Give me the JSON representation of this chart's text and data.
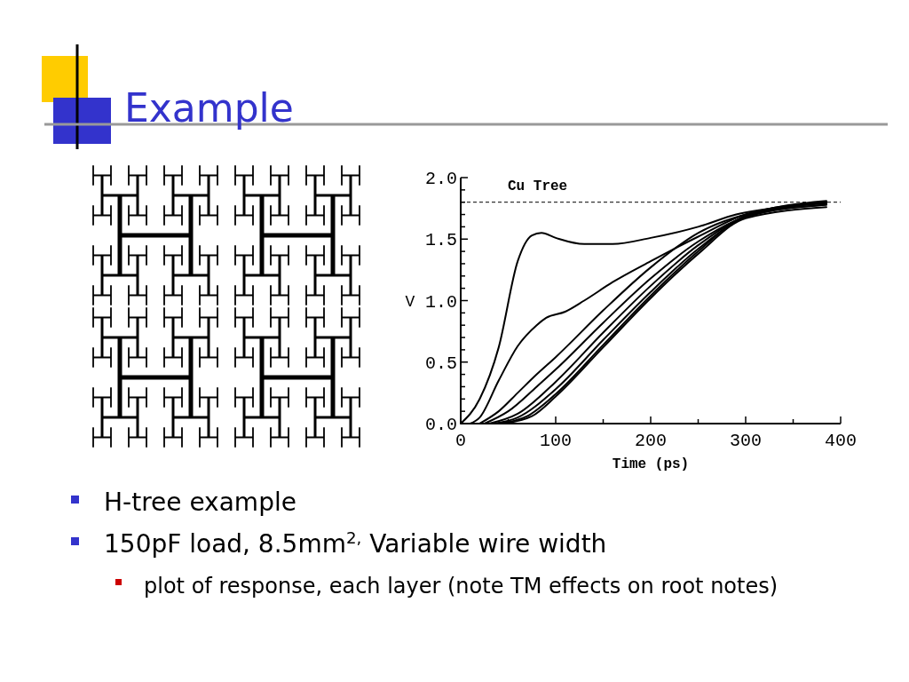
{
  "chart_data": {
    "type": "line",
    "title": "Example",
    "xlabel": "Time (ps)",
    "ylabel": "V",
    "xlim": [
      0,
      400
    ],
    "ylim": [
      0,
      2.0
    ],
    "xticks": [
      0,
      {
        "value": 50,
        "label": null
      },
      100,
      {
        "value": 150,
        "label": null
      },
      200,
      {
        "value": 250,
        "label": null
      },
      300,
      {
        "value": 350,
        "label": null
      },
      400
    ],
    "yticks": [
      {
        "value": 0,
        "label": "0.0"
      },
      {
        "value": 0.1,
        "label": null
      },
      {
        "value": 0.2,
        "label": null
      },
      {
        "value": 0.3,
        "label": null
      },
      {
        "value": 0.4,
        "label": null
      },
      0.5,
      {
        "value": 0.6,
        "label": null
      },
      {
        "value": 0.7,
        "label": null
      },
      {
        "value": 0.8,
        "label": null
      },
      {
        "value": 0.9,
        "label": null
      },
      {
        "value": 1.0,
        "label": "1.0"
      },
      {
        "value": 1.1,
        "label": null
      },
      {
        "value": 1.2,
        "label": null
      },
      {
        "value": 1.3,
        "label": null
      },
      {
        "value": 1.4,
        "label": null
      },
      1.5,
      {
        "value": 1.6,
        "label": null
      },
      {
        "value": 1.7,
        "label": null
      },
      {
        "value": 1.8,
        "label": null
      },
      {
        "value": 1.9,
        "label": null
      },
      {
        "value": 2.0,
        "label": "2.0"
      }
    ],
    "grid": false,
    "marker": "none",
    "line_style": "solid",
    "ref_lines": [
      {
        "axis": "y",
        "value": 1.8,
        "label": null,
        "line_style": "dashed",
        "color": "#000000"
      }
    ],
    "annotations": [
      "Cu Tree",
      "H-tree example",
      "150pF load, 8.5mm$^{2,}$ Variable wire width",
      "plot of response, each layer (note TM effects on root notes)"
    ],
    "series": [
      {
        "color": "#000000",
        "x": [
          0,
          20,
          40,
          60,
          75,
          85,
          100,
          130,
          160,
          200,
          250,
          290,
          350,
          385
        ],
        "values": [
          0,
          0.2,
          0.62,
          1.32,
          1.53,
          1.55,
          1.51,
          1.46,
          1.46,
          1.51,
          1.6,
          1.7,
          1.77,
          1.8
        ]
      },
      {
        "color": "#000000",
        "x": [
          10,
          20,
          40,
          60,
          80,
          90,
          110,
          130,
          160,
          200,
          250,
          300,
          385
        ],
        "values": [
          0,
          0.05,
          0.35,
          0.63,
          0.8,
          0.86,
          0.91,
          1.0,
          1.15,
          1.32,
          1.52,
          1.7,
          1.8
        ]
      },
      {
        "color": "#000000",
        "x": [
          20,
          40,
          60,
          80,
          100,
          150,
          200,
          250,
          300,
          385
        ],
        "values": [
          0,
          0.1,
          0.25,
          0.4,
          0.54,
          0.92,
          1.27,
          1.55,
          1.7,
          1.79
        ]
      },
      {
        "color": "#000000",
        "x": [
          25,
          50,
          80,
          100,
          150,
          200,
          250,
          300,
          385
        ],
        "values": [
          0,
          0.1,
          0.3,
          0.44,
          0.82,
          1.18,
          1.48,
          1.68,
          1.78
        ]
      },
      {
        "color": "#000000",
        "x": [
          30,
          60,
          100,
          150,
          200,
          250,
          300,
          385
        ],
        "values": [
          0,
          0.08,
          0.34,
          0.74,
          1.12,
          1.45,
          1.68,
          1.78
        ]
      },
      {
        "color": "#000000",
        "x": [
          35,
          60,
          100,
          150,
          200,
          250,
          300,
          385
        ],
        "values": [
          0,
          0.05,
          0.28,
          0.68,
          1.07,
          1.42,
          1.68,
          1.8
        ]
      },
      {
        "color": "#000000",
        "x": [
          40,
          70,
          100,
          150,
          200,
          250,
          300,
          385
        ],
        "values": [
          0,
          0.06,
          0.24,
          0.64,
          1.04,
          1.4,
          1.69,
          1.81
        ]
      },
      {
        "color": "#000000",
        "x": [
          45,
          75,
          100,
          150,
          200,
          250,
          300,
          385
        ],
        "values": [
          0,
          0.06,
          0.22,
          0.62,
          1.02,
          1.38,
          1.67,
          1.76
        ]
      }
    ]
  }
}
